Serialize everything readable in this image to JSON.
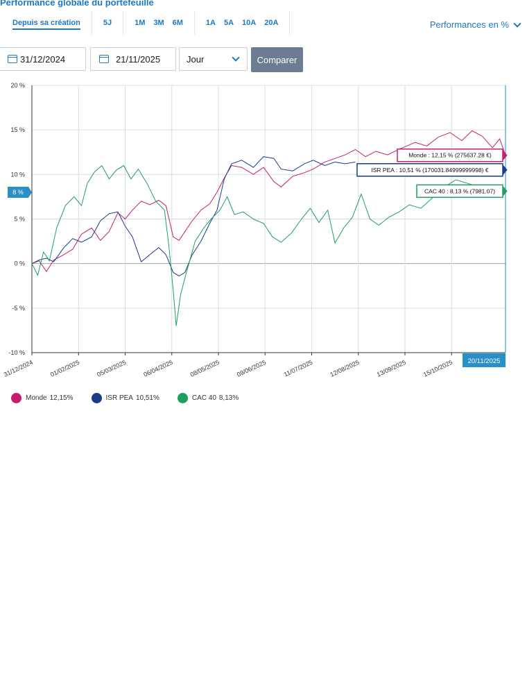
{
  "header": {
    "title": "Performance globale du portefeuille",
    "ranges": [
      {
        "label": "Depuis sa création",
        "active": true
      },
      {
        "label": "5J"
      },
      {
        "label": "1M"
      },
      {
        "label": "3M"
      },
      {
        "label": "6M"
      },
      {
        "label": "1A"
      },
      {
        "label": "5A"
      },
      {
        "label": "10A"
      },
      {
        "label": "20A"
      }
    ],
    "mode_label": "Performances en %"
  },
  "controls": {
    "start_date": "31/12/2024",
    "end_date": "21/11/2025",
    "granularity": "Jour",
    "compare_label": "Comparer"
  },
  "chart_data": {
    "type": "line",
    "y_unit": "%",
    "ylim": [
      -10,
      20
    ],
    "y_ticks": [
      "20 %",
      "15 %",
      "10 %",
      "5 %",
      "0 %",
      "-5 %",
      "-10 %"
    ],
    "x_range": [
      "2024-12-31",
      "2025-11-21"
    ],
    "x_ticks": [
      "31/12/2024",
      "01/02/2025",
      "05/03/2025",
      "06/04/2025",
      "08/05/2025",
      "09/06/2025",
      "11/07/2025",
      "12/08/2025",
      "13/09/2025",
      "15/10/2025"
    ],
    "cursor_date_label": "20/11/2025",
    "cursor_value_label": "8 %",
    "grid": true,
    "legend_position": "bottom-left",
    "series": [
      {
        "name": "Monde",
        "legend_value": "12,15%",
        "color": "#c81d6f",
        "tooltip": "Monde : 12,15 % (275637.28 €)",
        "points": [
          [
            "2024-12-31",
            0
          ],
          [
            "2025-01-05",
            0.3
          ],
          [
            "2025-01-10",
            -0.9
          ],
          [
            "2025-01-15",
            0.4
          ],
          [
            "2025-01-22",
            1.0
          ],
          [
            "2025-01-28",
            1.6
          ],
          [
            "2025-02-03",
            3.3
          ],
          [
            "2025-02-10",
            4.0
          ],
          [
            "2025-02-16",
            2.6
          ],
          [
            "2025-02-22",
            3.6
          ],
          [
            "2025-02-28",
            5.7
          ],
          [
            "2025-03-05",
            5.0
          ],
          [
            "2025-03-10",
            6.0
          ],
          [
            "2025-03-16",
            7.0
          ],
          [
            "2025-03-22",
            6.6
          ],
          [
            "2025-03-28",
            7.1
          ],
          [
            "2025-04-02",
            6.5
          ],
          [
            "2025-04-07",
            3.0
          ],
          [
            "2025-04-11",
            2.6
          ],
          [
            "2025-04-15",
            3.6
          ],
          [
            "2025-04-20",
            4.8
          ],
          [
            "2025-04-26",
            6.0
          ],
          [
            "2025-05-02",
            6.7
          ],
          [
            "2025-05-07",
            8.0
          ],
          [
            "2025-05-12",
            9.6
          ],
          [
            "2025-05-17",
            11.0
          ],
          [
            "2025-05-24",
            10.8
          ],
          [
            "2025-06-01",
            10.0
          ],
          [
            "2025-06-08",
            10.8
          ],
          [
            "2025-06-15",
            9.2
          ],
          [
            "2025-06-20",
            8.6
          ],
          [
            "2025-06-28",
            9.8
          ],
          [
            "2025-07-06",
            10.2
          ],
          [
            "2025-07-12",
            10.6
          ],
          [
            "2025-07-20",
            11.4
          ],
          [
            "2025-07-27",
            11.8
          ],
          [
            "2025-08-03",
            12.2
          ],
          [
            "2025-08-10",
            12.8
          ],
          [
            "2025-08-17",
            12.0
          ],
          [
            "2025-08-24",
            12.6
          ],
          [
            "2025-09-01",
            12.2
          ],
          [
            "2025-09-10",
            12.9
          ],
          [
            "2025-09-20",
            13.6
          ],
          [
            "2025-09-28",
            13.2
          ],
          [
            "2025-10-06",
            14.2
          ],
          [
            "2025-10-14",
            14.7
          ],
          [
            "2025-10-22",
            13.8
          ],
          [
            "2025-10-29",
            14.9
          ],
          [
            "2025-11-05",
            14.3
          ],
          [
            "2025-11-12",
            13.0
          ],
          [
            "2025-11-17",
            14.0
          ],
          [
            "2025-11-21",
            12.15
          ]
        ]
      },
      {
        "name": "ISR PEA",
        "legend_value": "10,51%",
        "color": "#1b3a8c",
        "tooltip": "ISR PEA : 10,51 % (170031.84999999998) €",
        "points": [
          [
            "2024-12-31",
            0
          ],
          [
            "2025-01-05",
            0.4
          ],
          [
            "2025-01-10",
            0.6
          ],
          [
            "2025-01-15",
            0.2
          ],
          [
            "2025-01-22",
            1.8
          ],
          [
            "2025-01-28",
            2.8
          ],
          [
            "2025-02-03",
            2.4
          ],
          [
            "2025-02-10",
            3.0
          ],
          [
            "2025-02-16",
            4.8
          ],
          [
            "2025-02-22",
            5.6
          ],
          [
            "2025-02-28",
            5.8
          ],
          [
            "2025-03-05",
            4.2
          ],
          [
            "2025-03-10",
            3.0
          ],
          [
            "2025-03-16",
            0.2
          ],
          [
            "2025-03-22",
            1.0
          ],
          [
            "2025-03-28",
            1.8
          ],
          [
            "2025-04-02",
            1.0
          ],
          [
            "2025-04-07",
            -1.0
          ],
          [
            "2025-04-11",
            -1.4
          ],
          [
            "2025-04-15",
            -1.0
          ],
          [
            "2025-04-20",
            1.0
          ],
          [
            "2025-04-26",
            2.5
          ],
          [
            "2025-05-02",
            4.5
          ],
          [
            "2025-05-07",
            6.0
          ],
          [
            "2025-05-12",
            9.5
          ],
          [
            "2025-05-17",
            11.2
          ],
          [
            "2025-05-24",
            11.6
          ],
          [
            "2025-06-01",
            10.8
          ],
          [
            "2025-06-08",
            12.0
          ],
          [
            "2025-06-15",
            11.8
          ],
          [
            "2025-06-20",
            10.6
          ],
          [
            "2025-06-28",
            10.4
          ],
          [
            "2025-07-06",
            11.2
          ],
          [
            "2025-07-12",
            11.6
          ],
          [
            "2025-07-20",
            11.0
          ],
          [
            "2025-07-27",
            11.4
          ],
          [
            "2025-08-03",
            11.2
          ],
          [
            "2025-08-10",
            11.4
          ]
        ]
      },
      {
        "name": "CAC 40",
        "legend_value": "8,13%",
        "color": "#1e9e5f",
        "tooltip": "CAC 40 : 8,13 % (7981.07)",
        "points": [
          [
            "2024-12-31",
            0
          ],
          [
            "2025-01-04",
            -1.3
          ],
          [
            "2025-01-08",
            1.3
          ],
          [
            "2025-01-12",
            0.3
          ],
          [
            "2025-01-17",
            4.0
          ],
          [
            "2025-01-23",
            6.5
          ],
          [
            "2025-01-29",
            7.5
          ],
          [
            "2025-02-03",
            6.5
          ],
          [
            "2025-02-07",
            9.0
          ],
          [
            "2025-02-12",
            10.3
          ],
          [
            "2025-02-17",
            11.0
          ],
          [
            "2025-02-22",
            9.5
          ],
          [
            "2025-02-27",
            10.5
          ],
          [
            "2025-03-04",
            11.0
          ],
          [
            "2025-03-09",
            9.5
          ],
          [
            "2025-03-14",
            10.6
          ],
          [
            "2025-03-20",
            9.0
          ],
          [
            "2025-03-26",
            7.0
          ],
          [
            "2025-04-01",
            6.0
          ],
          [
            "2025-04-04",
            2.0
          ],
          [
            "2025-04-07",
            -3.0
          ],
          [
            "2025-04-09",
            -7.0
          ],
          [
            "2025-04-12",
            -3.5
          ],
          [
            "2025-04-16",
            -1.0
          ],
          [
            "2025-04-22",
            2.5
          ],
          [
            "2025-04-28",
            4.0
          ],
          [
            "2025-05-03",
            5.0
          ],
          [
            "2025-05-09",
            6.0
          ],
          [
            "2025-05-14",
            7.5
          ],
          [
            "2025-05-19",
            5.5
          ],
          [
            "2025-05-25",
            5.8
          ],
          [
            "2025-06-01",
            5.0
          ],
          [
            "2025-06-08",
            4.5
          ],
          [
            "2025-06-14",
            3.0
          ],
          [
            "2025-06-20",
            2.4
          ],
          [
            "2025-06-27",
            3.4
          ],
          [
            "2025-07-04",
            5.0
          ],
          [
            "2025-07-10",
            6.2
          ],
          [
            "2025-07-16",
            4.6
          ],
          [
            "2025-07-22",
            6.0
          ],
          [
            "2025-07-27",
            2.3
          ],
          [
            "2025-08-02",
            4.0
          ],
          [
            "2025-08-08",
            5.2
          ],
          [
            "2025-08-14",
            7.8
          ],
          [
            "2025-08-20",
            5.0
          ],
          [
            "2025-08-26",
            4.3
          ],
          [
            "2025-09-02",
            5.2
          ],
          [
            "2025-09-09",
            5.8
          ],
          [
            "2025-09-16",
            6.6
          ],
          [
            "2025-09-24",
            6.2
          ],
          [
            "2025-10-02",
            7.4
          ],
          [
            "2025-10-10",
            8.6
          ],
          [
            "2025-10-18",
            9.4
          ],
          [
            "2025-10-26",
            9.0
          ],
          [
            "2025-11-03",
            8.6
          ],
          [
            "2025-11-10",
            8.0
          ],
          [
            "2025-11-16",
            8.4
          ],
          [
            "2025-11-21",
            8.13
          ]
        ]
      }
    ]
  }
}
